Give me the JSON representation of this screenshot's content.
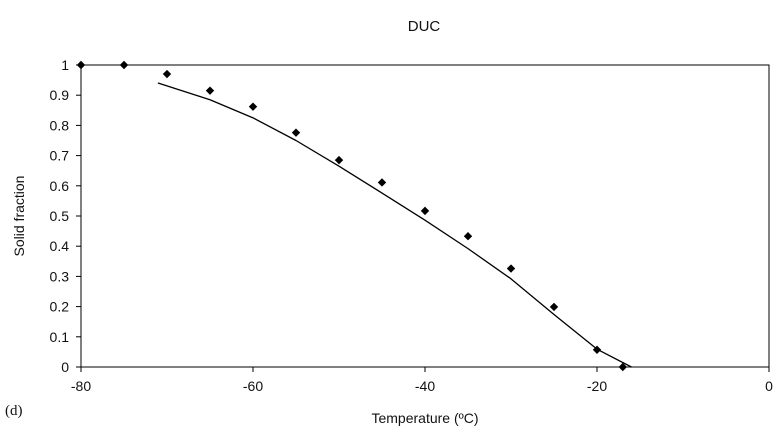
{
  "chart_data": {
    "type": "scatter",
    "title": "DUC",
    "panel_label": "(d)",
    "xlabel": "Temperature (ºC)",
    "ylabel": "Solid fraction",
    "xlim": [
      -80,
      0
    ],
    "ylim": [
      0,
      1
    ],
    "x_ticks": [
      -80,
      -60,
      -40,
      -20,
      0
    ],
    "y_ticks": [
      0,
      0.1,
      0.2,
      0.3,
      0.4,
      0.5,
      0.6,
      0.7,
      0.8,
      0.9,
      1
    ],
    "grid": false,
    "legend": "none",
    "series": [
      {
        "type": "scatter",
        "marker": "diamond",
        "color": "#000000",
        "x": [
          -80,
          -75,
          -70,
          -65,
          -60,
          -55,
          -50,
          -45,
          -40,
          -35,
          -30,
          -25,
          -20,
          -17
        ],
        "y": [
          1.0,
          1.0,
          0.97,
          0.915,
          0.862,
          0.776,
          0.685,
          0.611,
          0.517,
          0.433,
          0.326,
          0.199,
          0.057,
          0.0
        ]
      },
      {
        "type": "line",
        "color": "#000000",
        "x": [
          -71,
          -65,
          -60,
          -55,
          -50,
          -45,
          -40,
          -35,
          -30,
          -25,
          -20,
          -16
        ],
        "y": [
          0.94,
          0.885,
          0.825,
          0.75,
          0.665,
          0.576,
          0.486,
          0.392,
          0.292,
          0.174,
          0.059,
          0.0
        ]
      }
    ]
  }
}
